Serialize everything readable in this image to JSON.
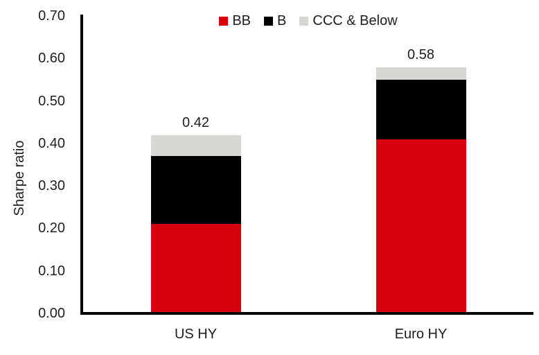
{
  "chart_data": {
    "type": "bar",
    "subtype": "stacked",
    "title": "",
    "ylabel": "Sharpe ratio",
    "xlabel": "",
    "categories": [
      "US HY",
      "Euro HY"
    ],
    "series": [
      {
        "name": "BB",
        "color": "#d7000f",
        "values": [
          0.21,
          0.41
        ]
      },
      {
        "name": "B",
        "color": "#000000",
        "values": [
          0.16,
          0.14
        ]
      },
      {
        "name": "CCC & Below",
        "color": "#d7d7d4",
        "values": [
          0.05,
          0.03
        ]
      }
    ],
    "totals": [
      0.42,
      0.58
    ],
    "total_labels": [
      "0.42",
      "0.58"
    ],
    "ylim": [
      0,
      0.7
    ],
    "ytick_labels": [
      "0.00",
      "0.10",
      "0.20",
      "0.30",
      "0.40",
      "0.50",
      "0.60",
      "0.70"
    ],
    "legend_position": "top-center",
    "grid": false,
    "axis_color": "#000000",
    "text_color": "#1f1f1f"
  }
}
